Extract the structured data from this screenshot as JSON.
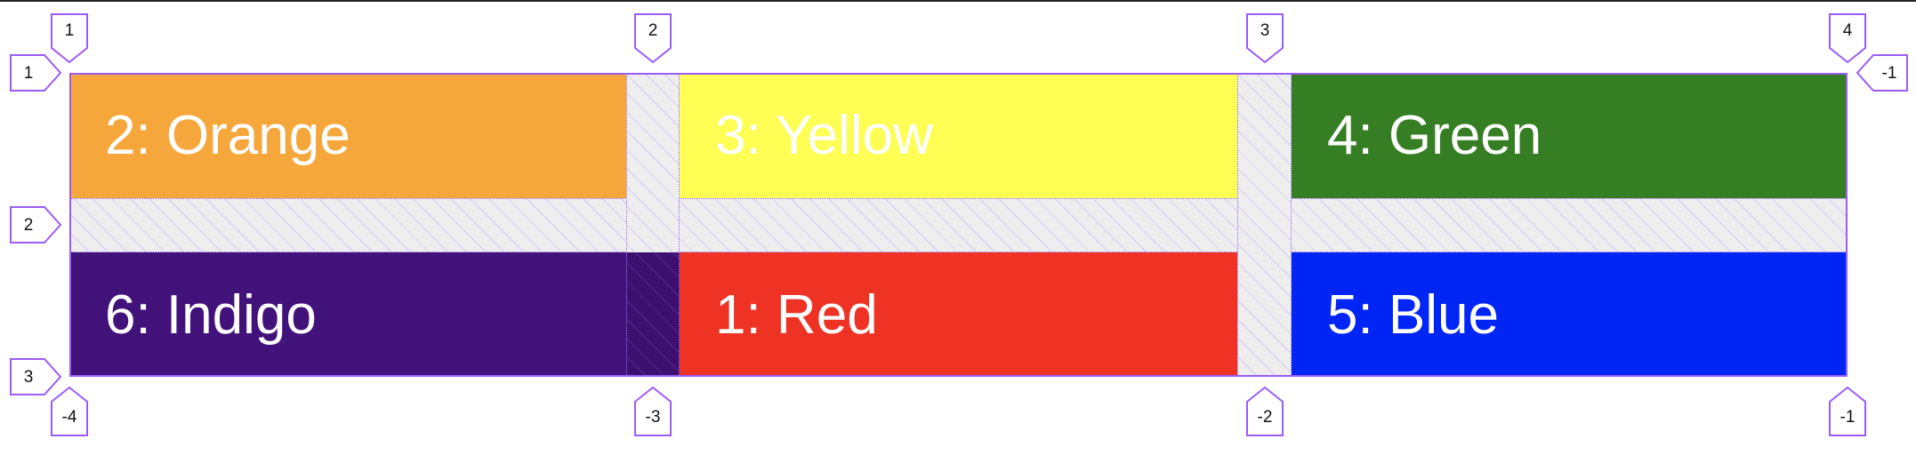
{
  "grid": {
    "items": [
      {
        "label": "2: Orange",
        "color": "#f5a73c",
        "text_color": "#ffffff"
      },
      {
        "label": "3: Yellow",
        "color": "#fefe55",
        "text_color": "#ffffff"
      },
      {
        "label": "4: Green",
        "color": "#367e24",
        "text_color": "#ffffff"
      },
      {
        "label": "6: Indigo",
        "color": "#42127b",
        "text_color": "#ffffff"
      },
      {
        "label": "1: Red",
        "color": "#ee3224",
        "text_color": "#ffffff"
      },
      {
        "label": "5: Blue",
        "color": "#0025f5",
        "text_color": "#ffffff"
      }
    ],
    "outline_color": "#9b5cf6"
  },
  "column_line_labels_top": [
    "1",
    "2",
    "3",
    "4"
  ],
  "column_line_labels_bottom": [
    "-4",
    "-3",
    "-2",
    "-1"
  ],
  "row_line_labels_left": [
    "1",
    "2",
    "3"
  ],
  "row_line_labels_right": [
    "-1"
  ]
}
